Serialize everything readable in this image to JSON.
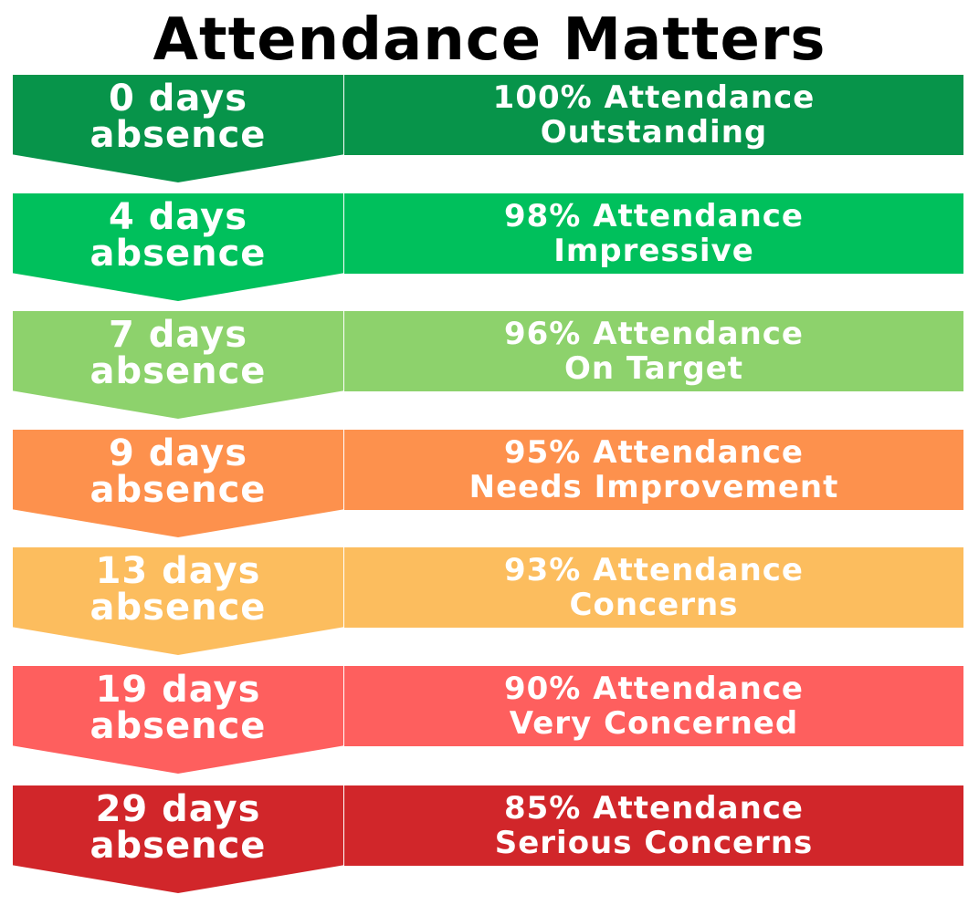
{
  "title": "Attendance Matters",
  "levels": [
    {
      "absence_number": "0 days",
      "absence_word": "absence",
      "percent": "100% Attendance",
      "status": "Outstanding",
      "color": "#07944a"
    },
    {
      "absence_number": "4 days",
      "absence_word": "absence",
      "percent": "98% Attendance",
      "status": "Impressive",
      "color": "#00c05c"
    },
    {
      "absence_number": "7 days",
      "absence_word": "absence",
      "percent": "96% Attendance",
      "status": "On Target",
      "color": "#8dd26c"
    },
    {
      "absence_number": "9 days",
      "absence_word": "absence",
      "percent": "95% Attendance",
      "status": "Needs Improvement",
      "color": "#fd914d"
    },
    {
      "absence_number": "13 days",
      "absence_word": "absence",
      "percent": "93% Attendance",
      "status": "Concerns",
      "color": "#fcbd5e"
    },
    {
      "absence_number": "19 days",
      "absence_word": "absence",
      "percent": "90% Attendance",
      "status": "Very Concerned",
      "color": "#fe5f5e"
    },
    {
      "absence_number": "29 days",
      "absence_word": "absence",
      "percent": "85% Attendance",
      "status": "Serious Concerns",
      "color": "#d1262a"
    }
  ]
}
